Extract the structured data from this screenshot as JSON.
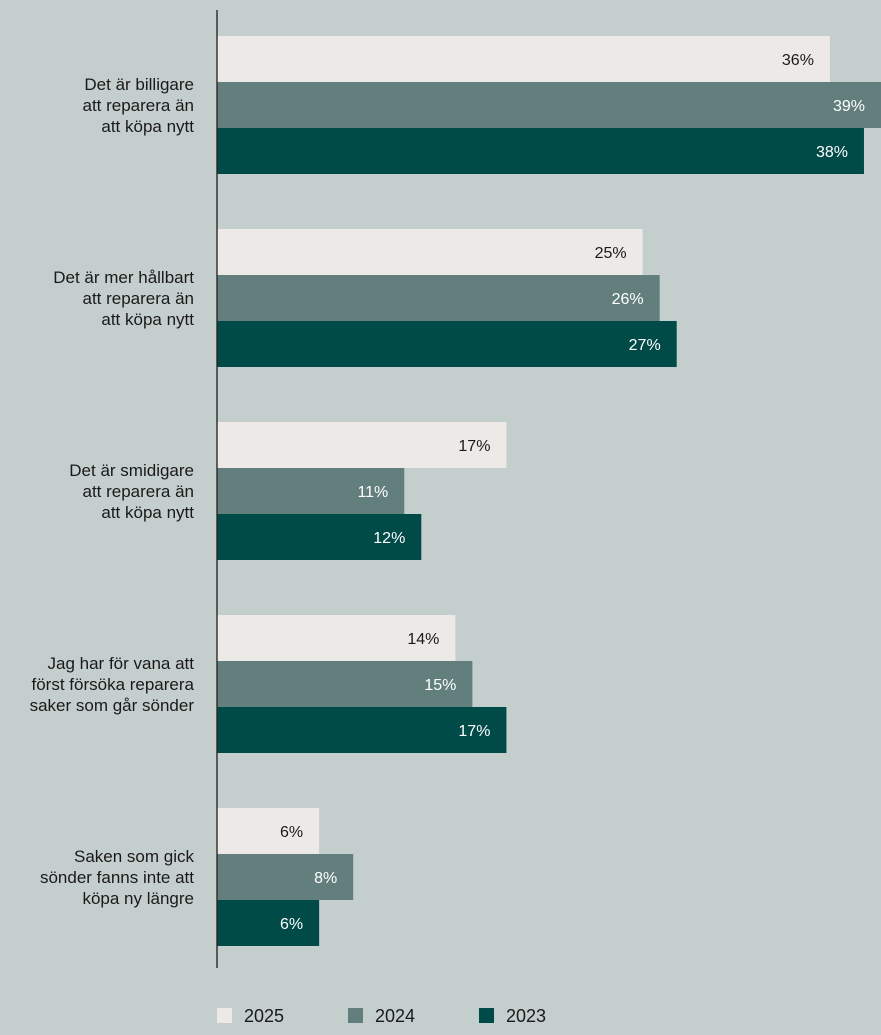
{
  "colors": {
    "background": "#c4cecd",
    "axis": "#2a2a2a",
    "label_text": "#1a1a1a",
    "value_text_light_bar": "#1a1a1a",
    "value_text_dark_bar": "#ffffff"
  },
  "chart_data": {
    "type": "bar",
    "orientation": "horizontal",
    "title": "",
    "xlabel": "",
    "ylabel": "",
    "xlim": [
      0,
      39
    ],
    "grid": false,
    "legend_position": "bottom",
    "value_suffix": "%",
    "categories": [
      [
        "Det är billigare",
        "att reparera än",
        "att köpa nytt"
      ],
      [
        "Det är mer hållbart",
        "att reparera än",
        "att köpa nytt"
      ],
      [
        "Det är smidigare",
        "att reparera än",
        "att köpa nytt"
      ],
      [
        "Jag har för vana att",
        "först försöka reparera",
        "saker som går sönder"
      ],
      [
        "Saken som gick",
        "sönder fanns inte att",
        "köpa ny längre"
      ]
    ],
    "series": [
      {
        "name": "2025",
        "color": "#ece9e6",
        "values": [
          36,
          25,
          17,
          14,
          6
        ]
      },
      {
        "name": "2024",
        "color": "#627f7d",
        "values": [
          39,
          26,
          11,
          15,
          8
        ]
      },
      {
        "name": "2023",
        "color": "#004a48",
        "values": [
          38,
          27,
          12,
          17,
          6
        ]
      }
    ]
  }
}
